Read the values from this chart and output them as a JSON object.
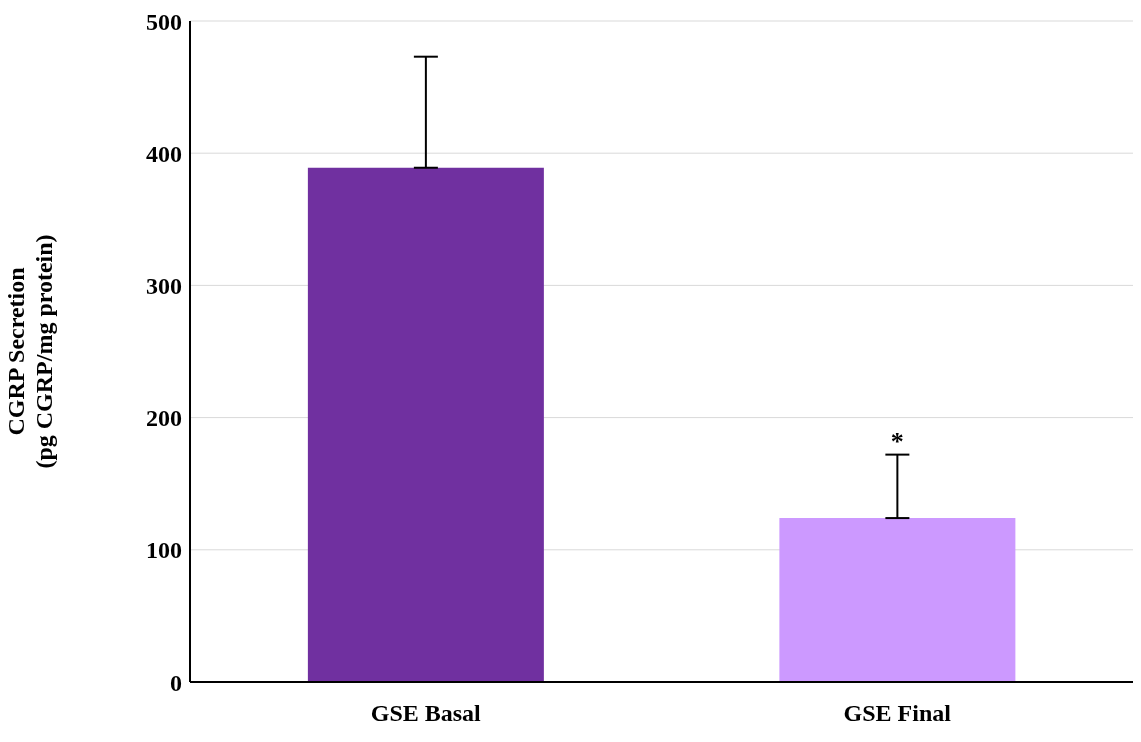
{
  "chart_data": {
    "type": "bar",
    "ylabel": "CGRP Secretion\n(pg CGRP/mg protein)",
    "categories": [
      "GSE Basal",
      "GSE Final"
    ],
    "values": [
      389,
      124
    ],
    "colors": [
      "#7030a0",
      "#cc99ff"
    ],
    "errors": [
      [
        389,
        473
      ],
      [
        124,
        172
      ]
    ],
    "ylim": [
      0,
      500
    ],
    "yticks": [
      0,
      100,
      200,
      300,
      400,
      500
    ],
    "grid": "y",
    "annotations": [
      {
        "text": "*",
        "x": "GSE Final",
        "y": 172
      }
    ]
  }
}
